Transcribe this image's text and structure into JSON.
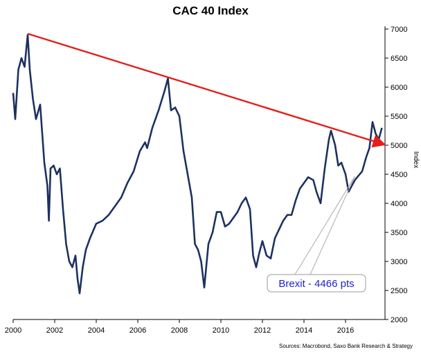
{
  "chart_data": {
    "type": "line",
    "title": "CAC 40 Index",
    "ylabel": "Index",
    "xlim": [
      2000,
      2017.9
    ],
    "ylim": [
      2000,
      7000
    ],
    "xticks": [
      2000,
      2002,
      2004,
      2006,
      2008,
      2010,
      2012,
      2014,
      2016
    ],
    "yticks": [
      2000,
      2500,
      3000,
      3500,
      4000,
      4500,
      5000,
      5500,
      6000,
      6500,
      7000
    ],
    "grid": false,
    "series": [
      {
        "name": "",
        "color": "#1c3160",
        "x": [
          2000.0,
          2000.1,
          2000.25,
          2000.4,
          2000.55,
          2000.7,
          2000.8,
          2000.95,
          2001.1,
          2001.3,
          2001.5,
          2001.65,
          2001.72,
          2001.8,
          2001.95,
          2002.1,
          2002.25,
          2002.4,
          2002.55,
          2002.7,
          2002.85,
          2003.0,
          2003.1,
          2003.2,
          2003.35,
          2003.5,
          2003.7,
          2004.0,
          2004.3,
          2004.6,
          2004.9,
          2005.2,
          2005.5,
          2005.8,
          2006.1,
          2006.35,
          2006.45,
          2006.7,
          2007.0,
          2007.3,
          2007.45,
          2007.6,
          2007.8,
          2008.0,
          2008.2,
          2008.4,
          2008.6,
          2008.75,
          2008.9,
          2009.05,
          2009.2,
          2009.4,
          2009.6,
          2009.8,
          2010.0,
          2010.2,
          2010.4,
          2010.6,
          2010.8,
          2011.0,
          2011.2,
          2011.4,
          2011.55,
          2011.7,
          2011.85,
          2012.0,
          2012.2,
          2012.4,
          2012.6,
          2012.8,
          2013.0,
          2013.2,
          2013.4,
          2013.6,
          2013.8,
          2014.0,
          2014.2,
          2014.45,
          2014.6,
          2014.8,
          2015.0,
          2015.2,
          2015.3,
          2015.5,
          2015.65,
          2015.8,
          2016.0,
          2016.15,
          2016.3,
          2016.45,
          2016.6,
          2016.8,
          2017.0,
          2017.15,
          2017.3,
          2017.45,
          2017.6,
          2017.75
        ],
        "values": [
          5900,
          5450,
          6300,
          6500,
          6350,
          6900,
          6300,
          5800,
          5450,
          5700,
          4700,
          4300,
          3700,
          4600,
          4650,
          4500,
          4600,
          3900,
          3300,
          3000,
          2900,
          3100,
          2700,
          2450,
          2900,
          3200,
          3400,
          3650,
          3700,
          3800,
          3950,
          4100,
          4350,
          4550,
          4900,
          5050,
          4950,
          5300,
          5600,
          5950,
          6150,
          5600,
          5650,
          5500,
          4900,
          4500,
          4100,
          3300,
          3200,
          3000,
          2550,
          3300,
          3500,
          3850,
          3850,
          3600,
          3650,
          3750,
          3850,
          4000,
          4100,
          3900,
          3100,
          2900,
          3150,
          3350,
          3100,
          3050,
          3400,
          3550,
          3700,
          3800,
          3800,
          4050,
          4250,
          4350,
          4450,
          4400,
          4200,
          4000,
          4600,
          5100,
          5250,
          5000,
          4650,
          4700,
          4500,
          4200,
          4300,
          4400,
          4466,
          4550,
          4800,
          4950,
          5400,
          5200,
          5100,
          5300
        ]
      }
    ],
    "trendline": {
      "color": "#e3201b",
      "x": [
        2000.7,
        2017.8
      ],
      "values": [
        6920,
        5020
      ]
    },
    "annotation": {
      "text": "Brexit - 4466 pts",
      "x": 2016.45,
      "value": 4466,
      "color": "#1f1fd0"
    },
    "source": "Sources: Macrobond, Saxo Bank Research & Strategy"
  }
}
